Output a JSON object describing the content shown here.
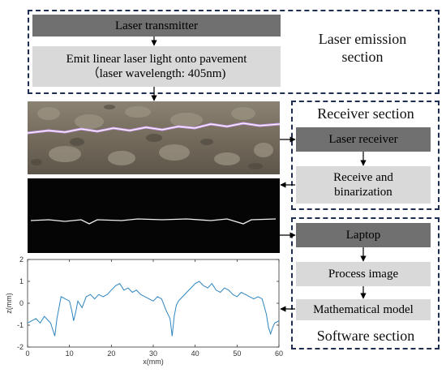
{
  "emission": {
    "transmitter": "Laser transmitter",
    "emit_line1": "Emit linear laser light onto pavement",
    "emit_line2": "（laser wavelength: 405nm)",
    "label_line1": "Laser emission",
    "label_line2": "section"
  },
  "receiver": {
    "label": "Receiver section",
    "receiver_box": "Laser receiver",
    "binar_line1": "Receive and",
    "binar_line2": "binarization"
  },
  "software": {
    "laptop": "Laptop",
    "process": "Process image",
    "model": "Mathematical model",
    "label": "Software section"
  },
  "chart_data": {
    "type": "line",
    "xlabel": "x(mm)",
    "ylabel": "z(mm)",
    "xlim": [
      0,
      60
    ],
    "ylim": [
      -2,
      2
    ],
    "xticks": [
      0,
      10,
      20,
      30,
      40,
      50,
      60
    ],
    "yticks": [
      -2,
      -1,
      0,
      1,
      2
    ],
    "colors": {
      "line": "#2e86c1"
    },
    "series": [
      {
        "x": [
          0,
          1,
          2,
          3,
          4,
          5,
          5.5,
          6,
          6.5,
          7,
          7.5,
          8,
          9,
          10,
          10.5,
          11,
          11.5,
          12,
          13,
          14,
          15,
          16,
          17,
          18,
          19,
          20,
          21,
          22,
          23,
          24,
          25,
          26,
          27,
          28,
          29,
          30,
          31,
          32,
          33,
          34,
          34.5,
          35,
          35.5,
          36,
          37,
          38,
          39,
          40,
          41,
          42,
          43,
          44,
          45,
          46,
          47,
          48,
          49,
          50,
          51,
          52,
          53,
          54,
          55,
          56,
          57,
          57.5,
          58,
          58.5,
          59,
          60
        ],
        "y": [
          -0.9,
          -0.8,
          -0.7,
          -0.9,
          -0.6,
          -0.8,
          -0.9,
          -1.2,
          -1.5,
          -0.7,
          -0.2,
          0.3,
          0.2,
          0.1,
          -0.3,
          -0.8,
          -0.4,
          0.1,
          -0.2,
          0.3,
          0.4,
          0.2,
          0.4,
          0.3,
          0.4,
          0.6,
          0.8,
          0.9,
          0.6,
          0.7,
          0.5,
          0.6,
          0.4,
          0.3,
          0.2,
          0.1,
          0.3,
          0.2,
          -0.3,
          -0.7,
          -1.5,
          -0.6,
          -0.1,
          0.1,
          0.3,
          0.5,
          0.7,
          0.9,
          1.0,
          0.8,
          0.7,
          0.9,
          0.6,
          0.5,
          0.7,
          0.6,
          0.4,
          0.3,
          0.5,
          0.4,
          0.3,
          0.2,
          0.3,
          0.2,
          -0.5,
          -1.1,
          -1.4,
          -1.1,
          -0.9,
          -0.8
        ]
      }
    ]
  }
}
